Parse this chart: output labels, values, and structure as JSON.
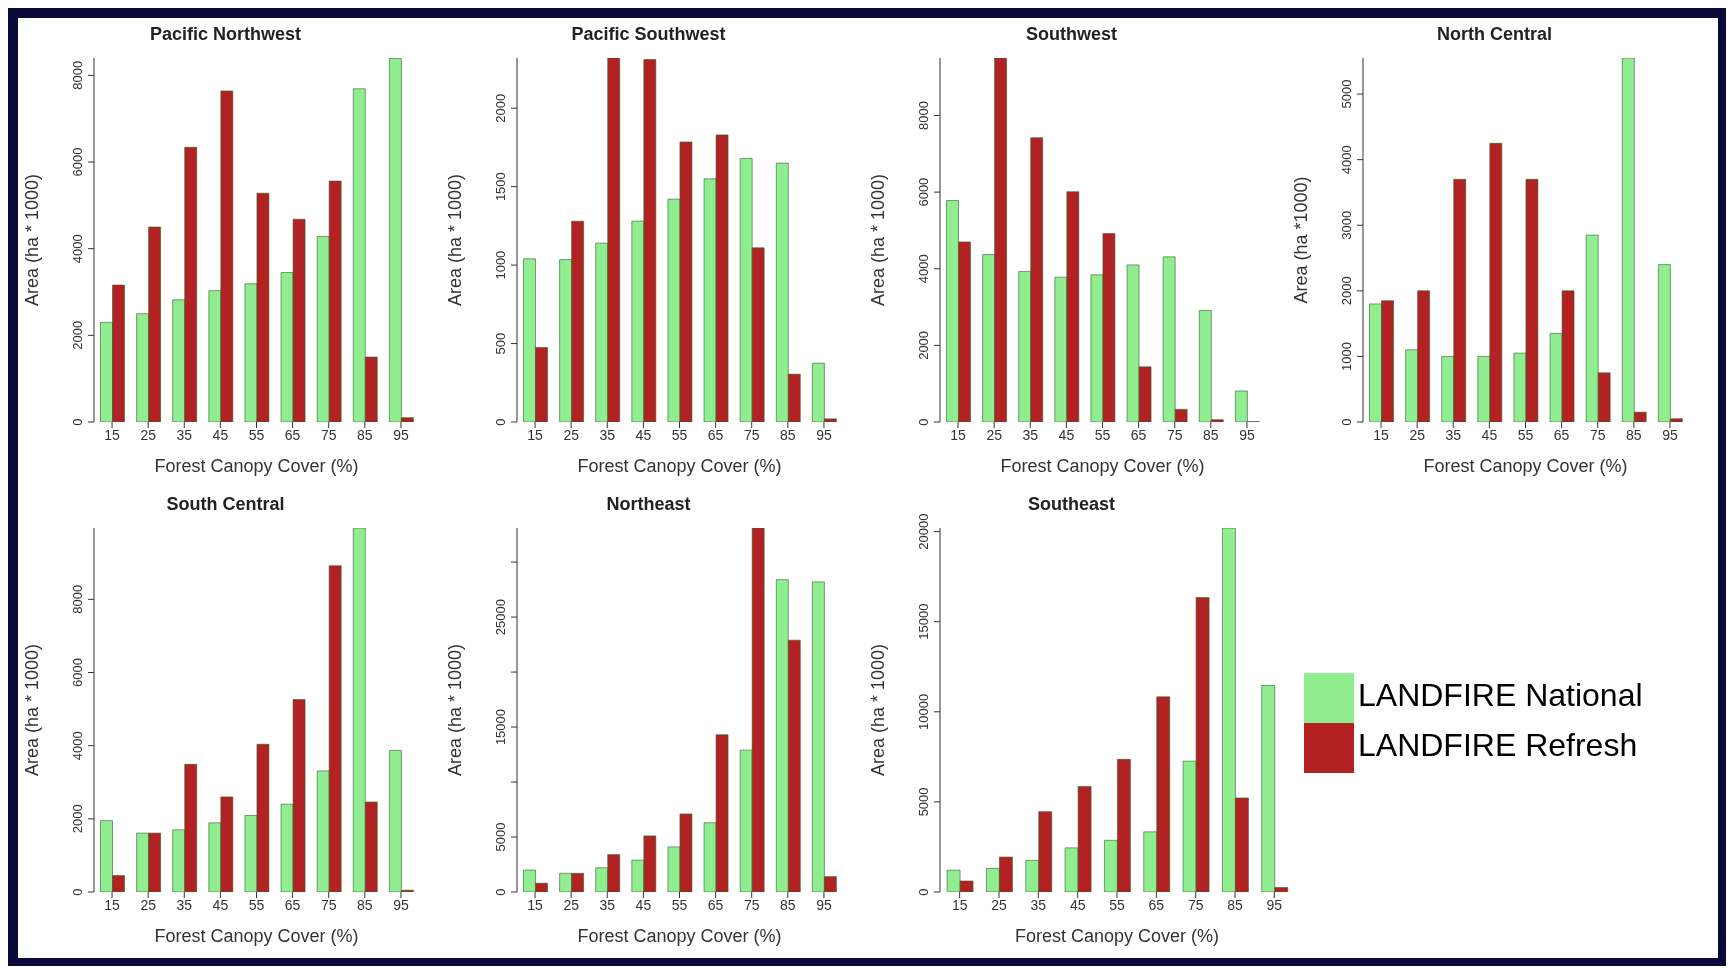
{
  "chart_data": [
    {
      "type": "bar",
      "title": "Pacific Northwest",
      "xlabel": "Forest Canopy Cover (%)",
      "ylabel": "Area (ha * 1000)",
      "categories": [
        "15",
        "25",
        "35",
        "45",
        "55",
        "65",
        "75",
        "85",
        "95"
      ],
      "ylim": [
        0,
        8400
      ],
      "yticks": [
        0,
        2000,
        4000,
        6000,
        8000
      ],
      "series": [
        {
          "color": "#90ee90",
          "values": [
            2300,
            2500,
            2820,
            3030,
            3190,
            3450,
            4280,
            7690,
            8390
          ]
        },
        {
          "color": "#b22222",
          "values": [
            3160,
            4500,
            6340,
            7640,
            5280,
            4680,
            5560,
            1500,
            100
          ]
        }
      ]
    },
    {
      "type": "bar",
      "title": "Pacific Southwest",
      "xlabel": "Forest Canopy Cover (%)",
      "ylabel": "Area (ha * 1000)",
      "categories": [
        "15",
        "25",
        "35",
        "45",
        "55",
        "65",
        "75",
        "85",
        "95"
      ],
      "ylim": [
        0,
        2320
      ],
      "yticks": [
        0,
        500,
        1000,
        1500,
        2000
      ],
      "series": [
        {
          "color": "#90ee90",
          "values": [
            1040,
            1035,
            1140,
            1280,
            1420,
            1550,
            1680,
            1650,
            375
          ]
        },
        {
          "color": "#b22222",
          "values": [
            475,
            1280,
            2320,
            2310,
            1785,
            1830,
            1110,
            305,
            20
          ]
        }
      ]
    },
    {
      "type": "bar",
      "title": "Southwest",
      "xlabel": "Forest Canopy Cover (%)",
      "ylabel": "Area (ha * 1000)",
      "categories": [
        "15",
        "25",
        "35",
        "45",
        "55",
        "65",
        "75",
        "85",
        "95"
      ],
      "ylim": [
        0,
        9500
      ],
      "yticks": [
        0,
        2000,
        4000,
        6000,
        8000
      ],
      "series": [
        {
          "color": "#90ee90",
          "values": [
            5780,
            4370,
            3930,
            3780,
            3840,
            4100,
            4310,
            2910,
            810
          ]
        },
        {
          "color": "#b22222",
          "values": [
            4700,
            9500,
            7420,
            6010,
            4920,
            1440,
            330,
            60,
            10
          ]
        }
      ]
    },
    {
      "type": "bar",
      "title": "North Central",
      "xlabel": "Forest Canopy Cover (%)",
      "ylabel": "Area (ha *1000)",
      "categories": [
        "15",
        "25",
        "35",
        "45",
        "55",
        "65",
        "75",
        "85",
        "95"
      ],
      "ylim": [
        0,
        5550
      ],
      "yticks": [
        0,
        1000,
        2000,
        3000,
        4000,
        5000
      ],
      "series": [
        {
          "color": "#90ee90",
          "values": [
            1800,
            1100,
            1000,
            1000,
            1050,
            1350,
            2850,
            5550,
            2400
          ]
        },
        {
          "color": "#b22222",
          "values": [
            1850,
            2000,
            3700,
            4250,
            3700,
            2000,
            750,
            150,
            50
          ]
        }
      ]
    },
    {
      "type": "bar",
      "title": "South Central",
      "xlabel": "Forest Canopy Cover (%)",
      "ylabel": "Area (ha * 1000)",
      "categories": [
        "15",
        "25",
        "35",
        "45",
        "55",
        "65",
        "75",
        "85",
        "95"
      ],
      "ylim": [
        0,
        9950
      ],
      "yticks": [
        0,
        2000,
        4000,
        6000,
        8000
      ],
      "series": [
        {
          "color": "#90ee90",
          "values": [
            1950,
            1610,
            1700,
            1890,
            2090,
            2400,
            3310,
            9950,
            3870
          ]
        },
        {
          "color": "#b22222",
          "values": [
            450,
            1610,
            3490,
            2600,
            4040,
            5260,
            8920,
            2460,
            50
          ]
        }
      ]
    },
    {
      "type": "bar",
      "title": "Northeast",
      "xlabel": "Forest Canopy Cover (%)",
      "ylabel": "Area (ha * 1000)",
      "categories": [
        "15",
        "25",
        "35",
        "45",
        "55",
        "65",
        "75",
        "85",
        "95"
      ],
      "ylim": [
        0,
        33100
      ],
      "yticks": [
        0,
        5000,
        {
          "value": 10000,
          "label": null
        },
        15000,
        {
          "value": 20000,
          "label": null
        },
        25000,
        {
          "value": 30000,
          "label": null
        }
      ],
      "series": [
        {
          "color": "#90ee90",
          "values": [
            2000,
            1700,
            2200,
            2900,
            4100,
            6300,
            12900,
            28400,
            28200
          ]
        },
        {
          "color": "#b22222",
          "values": [
            800,
            1700,
            3400,
            5100,
            7100,
            14300,
            33100,
            22900,
            1400
          ]
        }
      ]
    },
    {
      "type": "bar",
      "title": "Southeast",
      "xlabel": "Forest Canopy Cover (%)",
      "ylabel": "Area (ha * 1000)",
      "categories": [
        "15",
        "25",
        "35",
        "45",
        "55",
        "65",
        "75",
        "85",
        "95"
      ],
      "ylim": [
        0,
        20200
      ],
      "yticks": [
        0,
        5000,
        10000,
        15000,
        20000
      ],
      "legend": "right",
      "series": [
        {
          "name": "LANDFIRE National",
          "color": "#90ee90",
          "values": [
            1210,
            1310,
            1750,
            2450,
            2870,
            3340,
            7260,
            20190,
            11460
          ]
        },
        {
          "name": "LANDFIRE Refresh",
          "color": "#b22222",
          "values": [
            610,
            1940,
            4460,
            5860,
            7360,
            10830,
            16340,
            5220,
            250
          ]
        }
      ]
    }
  ]
}
